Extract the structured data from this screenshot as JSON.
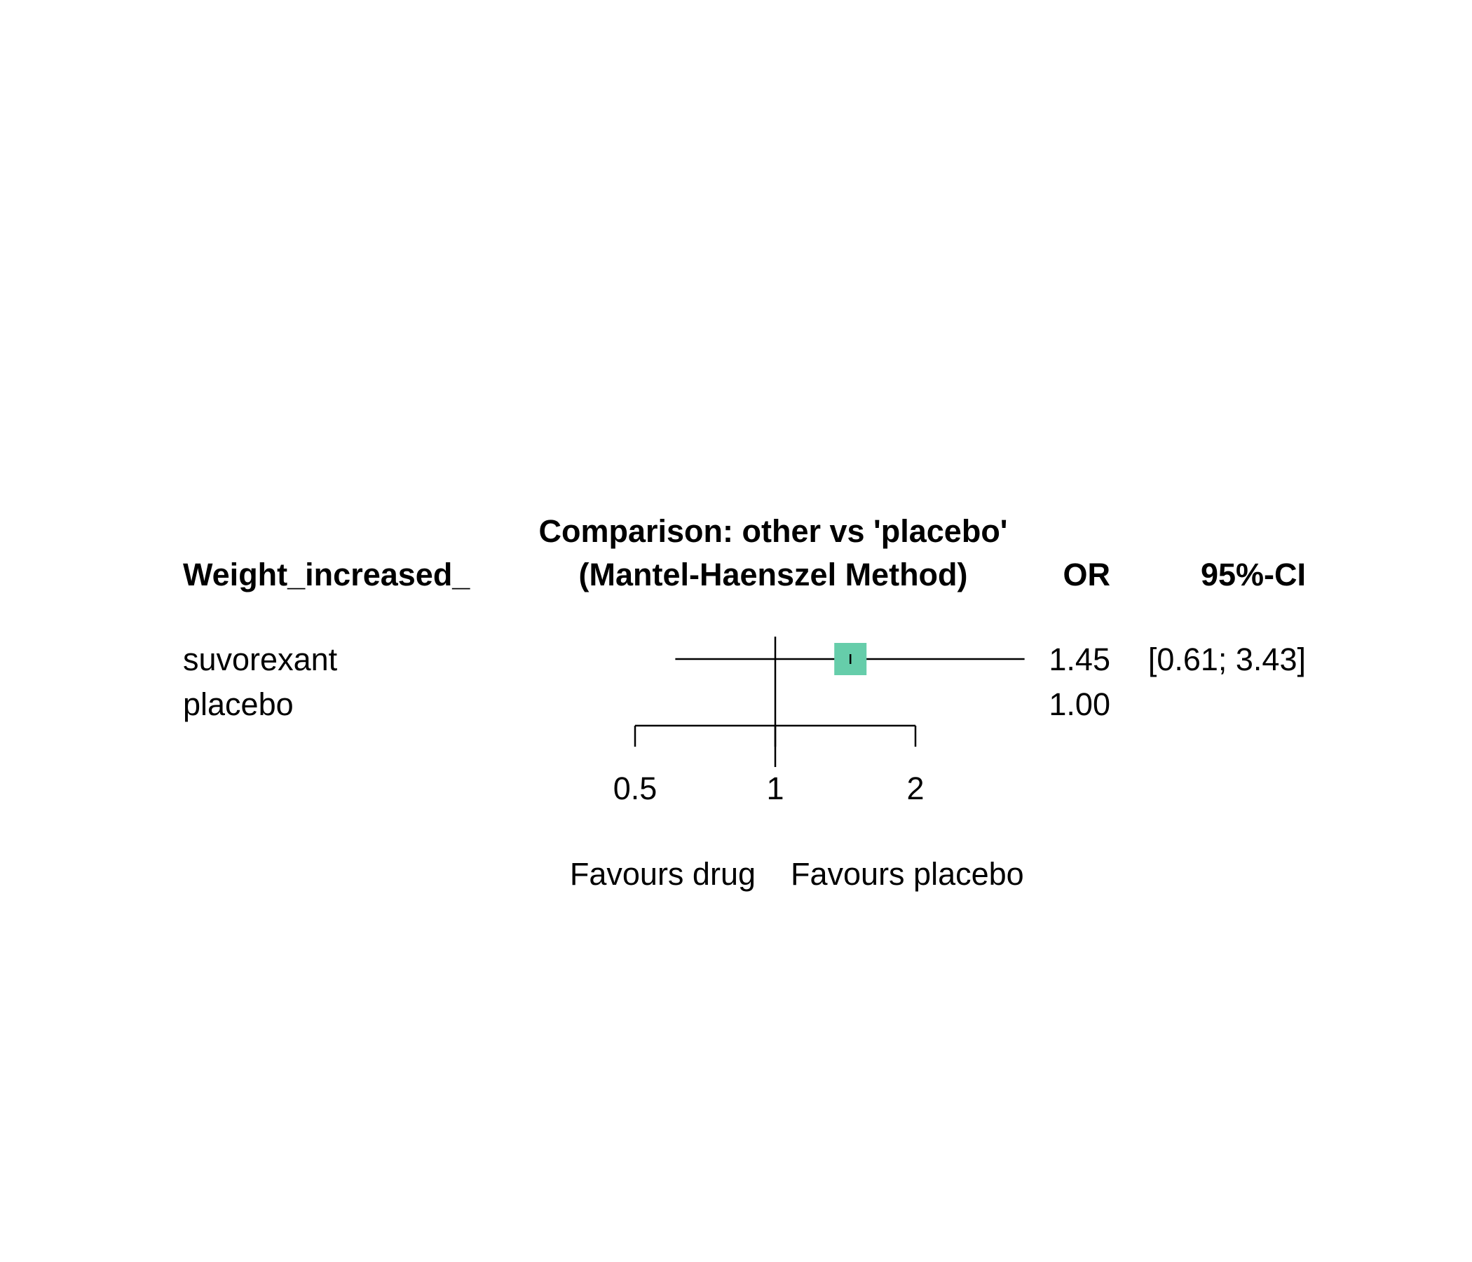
{
  "chart_data": {
    "type": "forest",
    "title": "Comparison: other vs 'placebo'",
    "subtitle": "(Mantel-Haenszel Method)",
    "columns": {
      "label": "Weight_increased_",
      "estimate": "OR",
      "ci": "95%-CI"
    },
    "rows": [
      {
        "label": "suvorexant",
        "or": 1.45,
        "lower": 0.61,
        "upper": 3.43,
        "or_text": "1.45",
        "ci_text": "[0.61; 3.43]"
      },
      {
        "label": "placebo",
        "or": 1.0,
        "lower": null,
        "upper": null,
        "or_text": "1.00",
        "ci_text": ""
      }
    ],
    "x_scale": "log",
    "x_ticks": [
      0.5,
      1,
      2
    ],
    "x_tick_labels": [
      "0.5",
      "1",
      "2"
    ],
    "reference_line": 1,
    "xlabel_left": "Favours drug",
    "xlabel_right": "Favours placebo",
    "marker_color": "#66CDAA",
    "line_color": "#000000"
  }
}
